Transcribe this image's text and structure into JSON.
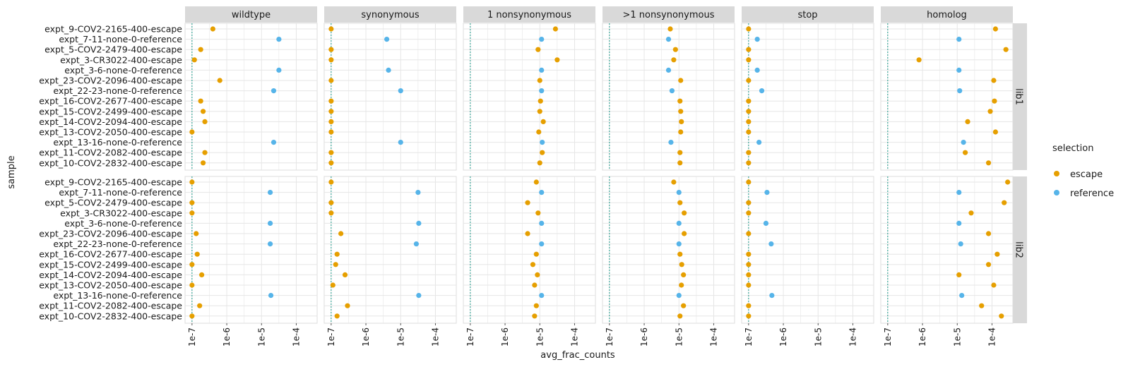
{
  "chart_data": {
    "type": "scatter",
    "facet_columns": [
      "wildtype",
      "synonymous",
      "1 nonsynonymous",
      ">1 nonsynonymous",
      "stop",
      "homolog"
    ],
    "facet_rows": [
      "lib1",
      "lib2"
    ],
    "samples": [
      "expt_9-COV2-2165-400-escape",
      "expt_7-11-none-0-reference",
      "expt_5-COV2-2479-400-escape",
      "expt_3-CR3022-400-escape",
      "expt_3-6-none-0-reference",
      "expt_23-COV2-2096-400-escape",
      "expt_22-23-none-0-reference",
      "expt_16-COV2-2677-400-escape",
      "expt_15-COV2-2499-400-escape",
      "expt_14-COV2-2094-400-escape",
      "expt_13-COV2-2050-400-escape",
      "expt_13-16-none-0-reference",
      "expt_11-COV2-2082-400-escape",
      "expt_10-COV2-2832-400-escape"
    ],
    "selection_by_sample": [
      "escape",
      "reference",
      "escape",
      "escape",
      "reference",
      "escape",
      "reference",
      "escape",
      "escape",
      "escape",
      "escape",
      "reference",
      "escape",
      "escape"
    ],
    "x_scale": "log10",
    "x_ticks": [
      "1e-7",
      "1e-6",
      "1e-5",
      "1e-4"
    ],
    "x_tick_values": [
      -7,
      -6,
      -5,
      -4
    ],
    "xlim_log10": [
      -7.2,
      -3.4
    ],
    "threshold_log10": -7,
    "xlabel": "avg_frac_counts",
    "ylabel": "sample",
    "legend": {
      "title": "selection",
      "position": "right",
      "entries": [
        {
          "name": "escape",
          "color": "#E69F00"
        },
        {
          "name": "reference",
          "color": "#56B4E9"
        }
      ]
    },
    "colors": {
      "escape": "#E69F00",
      "reference": "#56B4E9",
      "threshold": "#1a9a8a",
      "strip": "#d9d9d9",
      "grid": "#e6e6e6"
    },
    "values_log10": {
      "lib1": {
        "wildtype": [
          -6.4,
          -4.5,
          -6.75,
          -6.93,
          -4.5,
          -6.2,
          -4.65,
          -6.75,
          -6.68,
          -6.63,
          -7.0,
          -4.65,
          -6.63,
          -6.68
        ],
        "synonymous": [
          -7.0,
          -5.4,
          -7.0,
          -7.0,
          -5.35,
          -7.0,
          -5.0,
          -7.0,
          -7.0,
          -7.0,
          -7.0,
          -5.0,
          -7.0,
          -7.0
        ],
        "1 nonsynonymous": [
          -4.55,
          -4.95,
          -5.05,
          -4.5,
          -4.95,
          -5.0,
          -4.95,
          -4.98,
          -5.0,
          -4.9,
          -5.03,
          -4.93,
          -4.93,
          -5.0
        ],
        ">1 nonsynonymous": [
          -5.25,
          -5.3,
          -5.1,
          -5.15,
          -5.3,
          -4.95,
          -5.2,
          -4.97,
          -4.95,
          -4.93,
          -4.95,
          -5.23,
          -4.97,
          -4.97
        ],
        "stop": [
          -7.0,
          -6.75,
          -7.0,
          -7.0,
          -6.75,
          -7.0,
          -6.62,
          -7.0,
          -7.0,
          -7.0,
          -7.0,
          -6.7,
          -7.0,
          -7.0
        ],
        "homolog": [
          -3.9,
          -4.95,
          -3.6,
          -6.1,
          -4.95,
          -3.95,
          -4.93,
          -3.93,
          -4.05,
          -4.7,
          -3.9,
          -4.82,
          -4.77,
          -4.1
        ]
      },
      "lib2": {
        "wildtype": [
          -7.0,
          -4.75,
          -7.0,
          -7.0,
          -4.75,
          -6.88,
          -4.75,
          -6.85,
          -7.0,
          -6.72,
          -7.0,
          -4.73,
          -6.78,
          -7.0
        ],
        "synonymous": [
          -7.0,
          -4.5,
          -7.0,
          -7.0,
          -4.48,
          -6.72,
          -4.55,
          -6.83,
          -6.87,
          -6.6,
          -6.95,
          -4.48,
          -6.53,
          -6.83
        ],
        "1 nonsynonymous": [
          -5.1,
          -4.95,
          -5.35,
          -5.05,
          -4.95,
          -5.35,
          -4.95,
          -5.1,
          -5.2,
          -5.07,
          -5.15,
          -4.95,
          -5.1,
          -5.15
        ],
        ">1 nonsynonymous": [
          -5.15,
          -5.0,
          -4.97,
          -4.85,
          -5.0,
          -4.85,
          -5.0,
          -4.97,
          -4.92,
          -4.87,
          -4.93,
          -5.0,
          -4.87,
          -4.97
        ],
        "stop": [
          -7.0,
          -6.47,
          -7.0,
          -7.0,
          -6.5,
          -7.0,
          -6.35,
          -7.0,
          -7.0,
          -7.0,
          -7.0,
          -6.33,
          -7.0,
          -7.0
        ],
        "homolog": [
          -3.55,
          -4.95,
          -3.65,
          -4.6,
          -4.95,
          -4.1,
          -4.9,
          -3.85,
          -4.1,
          -4.95,
          -3.95,
          -4.87,
          -4.3,
          -3.73
        ]
      }
    }
  }
}
